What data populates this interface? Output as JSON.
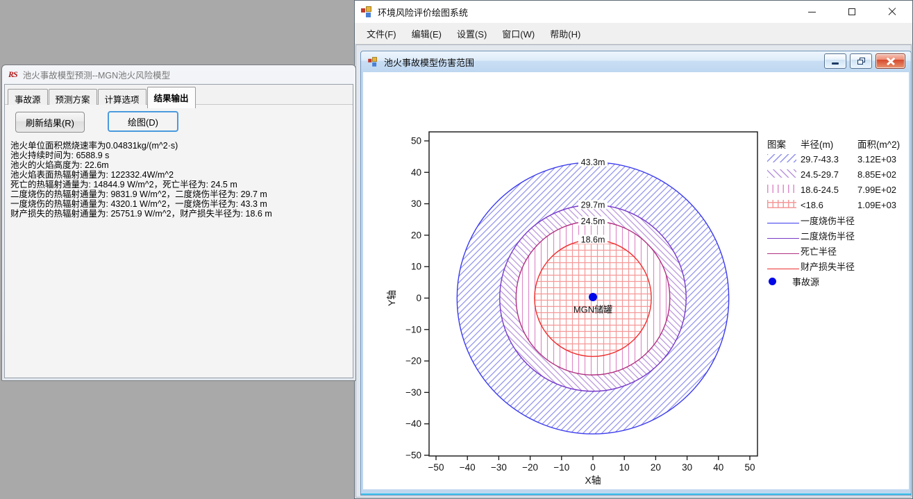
{
  "desktop": {
    "background": "#a9a9a9"
  },
  "left_window": {
    "icon_text": "RS",
    "title": "池火事故模型预测--MGN池火风险模型",
    "tabs": [
      {
        "id": "accident-source",
        "label": "事故源",
        "active": false
      },
      {
        "id": "prediction-plan",
        "label": "预测方案",
        "active": false
      },
      {
        "id": "calc-options",
        "label": "计算选项",
        "active": false
      },
      {
        "id": "result-output",
        "label": "结果输出",
        "active": true
      }
    ],
    "refresh_button": "刷新结果(R)",
    "draw_button": "绘图(D)",
    "results": [
      "池火单位面积燃烧速率为0.04831kg/(m^2·s)",
      "池火持续时间为: 6588.9 s",
      "池火的火焰高度为: 22.6m",
      "池火焰表面热辐射通量为: 122332.4W/m^2",
      "死亡的热辐射通量为: 14844.9 W/m^2，死亡半径为: 24.5 m",
      "二度烧伤的热辐射通量为: 9831.9 W/m^2，二度烧伤半径为: 29.7 m",
      "一度烧伤的热辐射通量为: 4320.1 W/m^2，一度烧伤半径为: 43.3 m",
      "财产损失的热辐射通量为: 25751.9 W/m^2，财产损失半径为: 18.6 m"
    ]
  },
  "main_window": {
    "title": "环境风险评价绘图系统",
    "menu": [
      {
        "id": "file",
        "label": "文件(F)"
      },
      {
        "id": "edit",
        "label": "编辑(E)"
      },
      {
        "id": "settings",
        "label": "设置(S)"
      },
      {
        "id": "window",
        "label": "窗口(W)"
      },
      {
        "id": "help",
        "label": "帮助(H)"
      }
    ],
    "window_controls": [
      "minimize-icon",
      "maximize-icon",
      "close-icon"
    ]
  },
  "child_window": {
    "title": "池火事故模型伤害范围",
    "window_controls": [
      "minimize-icon",
      "restore-icon",
      "close-icon"
    ]
  },
  "chart_data": {
    "type": "area",
    "subtype": "concentric-damage-circles",
    "title": "",
    "xlabel": "X轴",
    "ylabel": "Y轴",
    "xlim": [
      -50,
      50
    ],
    "ylim": [
      -50,
      50
    ],
    "xticks": [
      -50,
      -40,
      -30,
      -20,
      -10,
      0,
      10,
      20,
      30,
      40,
      50
    ],
    "yticks": [
      -50,
      -40,
      -30,
      -20,
      -10,
      0,
      10,
      20,
      30,
      40,
      50
    ],
    "grid": false,
    "frame_color": "#222222",
    "center_point": {
      "x": 0,
      "y": 0,
      "label": "MGN储罐",
      "color": "#0008e8"
    },
    "circles": [
      {
        "name": "一度烧伤半径",
        "radius_m": 43.3,
        "label": "43.3m",
        "line_color": "#3a3aee",
        "hatch": "diagonal-forward",
        "hatch_color": "#9090ee"
      },
      {
        "name": "二度烧伤半径",
        "radius_m": 29.7,
        "label": "29.7m",
        "line_color": "#7638c8",
        "hatch": "diagonal-back",
        "hatch_color": "#b893de"
      },
      {
        "name": "死亡半径",
        "radius_m": 24.5,
        "label": "24.5m",
        "line_color": "#b03080",
        "hatch": "vertical",
        "hatch_color": "#de8cc8"
      },
      {
        "name": "财产损失半径",
        "radius_m": 18.6,
        "label": "18.6m",
        "line_color": "#ee2f2f",
        "hatch": "grid",
        "hatch_color": "#f59898"
      }
    ],
    "legend": {
      "position": "right",
      "headers": [
        "图案",
        "半径(m)",
        "面积(m^2)"
      ],
      "pattern_rows": [
        {
          "hatch": "diagonal-forward",
          "color": "#9090ee",
          "radius_range": "29.7-43.3",
          "area": "3.12E+03"
        },
        {
          "hatch": "diagonal-back",
          "color": "#b893de",
          "radius_range": "24.5-29.7",
          "area": "8.85E+02"
        },
        {
          "hatch": "vertical",
          "color": "#de8cc8",
          "radius_range": "18.6-24.5",
          "area": "7.99E+02"
        },
        {
          "hatch": "grid",
          "color": "#f59898",
          "radius_range": "<18.6",
          "area": "1.09E+03"
        }
      ],
      "line_rows": [
        {
          "label": "一度烧伤半径",
          "color": "#3a3aee"
        },
        {
          "label": "二度烧伤半径",
          "color": "#7638c8"
        },
        {
          "label": "死亡半径",
          "color": "#b03080"
        },
        {
          "label": "财产损失半径",
          "color": "#ee2f2f"
        }
      ],
      "marker_row": {
        "label": "事故源",
        "color": "#0008e8"
      }
    }
  }
}
